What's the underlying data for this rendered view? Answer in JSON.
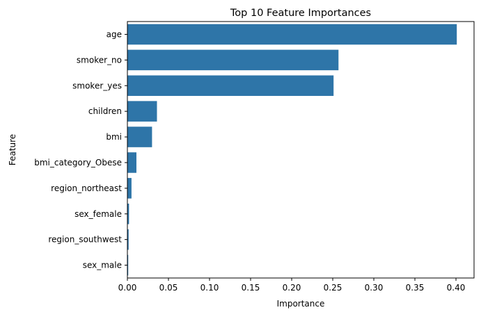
{
  "chart_data": {
    "type": "bar",
    "orientation": "horizontal",
    "title": "Top 10 Feature Importances",
    "xlabel": "Importance",
    "ylabel": "Feature",
    "categories": [
      "age",
      "smoker_no",
      "smoker_yes",
      "children",
      "bmi",
      "bmi_category_Obese",
      "region_northeast",
      "sex_female",
      "region_southwest",
      "sex_male"
    ],
    "values": [
      0.401,
      0.257,
      0.251,
      0.036,
      0.03,
      0.011,
      0.005,
      0.002,
      0.0015,
      0.001
    ],
    "xlim": [
      0,
      0.422
    ],
    "xticks": [
      "0.00",
      "0.05",
      "0.10",
      "0.15",
      "0.20",
      "0.25",
      "0.30",
      "0.35",
      "0.40"
    ],
    "grid": false,
    "bar_color": "#2e75a8"
  }
}
